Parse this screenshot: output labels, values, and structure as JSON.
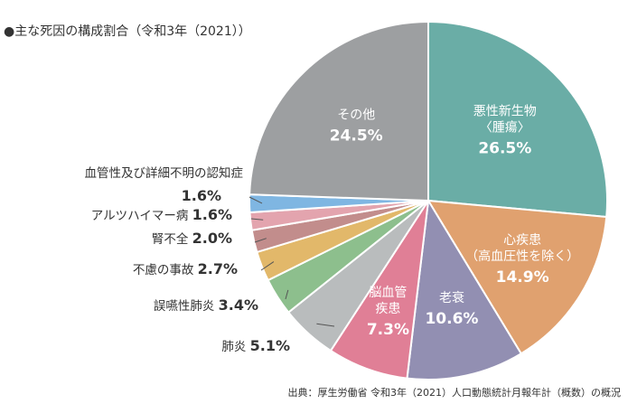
{
  "title": "●主な死因の構成割合（令和3年（2021））",
  "source": "出典：厚生労働省 令和3年（2021）人口動態統計月報年計（概数）の概況",
  "chart_data": {
    "type": "pie",
    "title": "●主な死因の構成割合（令和3年（2021））",
    "unit": "%",
    "slices": [
      {
        "name": "悪性新生物〈腫瘍〉",
        "name_lines": [
          "悪性新生物",
          "〈腫瘍〉"
        ],
        "value": 26.5,
        "label": "26.5%",
        "color": "#6aada6",
        "label_side": "inside"
      },
      {
        "name": "心疾患（高血圧性を除く）",
        "name_lines": [
          "心疾患",
          "（高血圧性を除く）"
        ],
        "value": 14.9,
        "label": "14.9%",
        "color": "#e0a16f",
        "label_side": "inside"
      },
      {
        "name": "老衰",
        "name_lines": [
          "老衰"
        ],
        "value": 10.6,
        "label": "10.6%",
        "color": "#928fb2",
        "label_side": "inside"
      },
      {
        "name": "脳血管疾患",
        "name_lines": [
          "脳血管",
          "疾患"
        ],
        "value": 7.3,
        "label": "7.3%",
        "color": "#e07f96",
        "label_side": "inside"
      },
      {
        "name": "肺炎",
        "name_lines": [
          "肺炎"
        ],
        "value": 5.1,
        "label": "5.1%",
        "color": "#b9bcbd",
        "label_side": "outside"
      },
      {
        "name": "誤嚥性肺炎",
        "name_lines": [
          "誤嚥性肺炎"
        ],
        "value": 3.4,
        "label": "3.4%",
        "color": "#8dbf8d",
        "label_side": "outside"
      },
      {
        "name": "不慮の事故",
        "name_lines": [
          "不慮の事故"
        ],
        "value": 2.7,
        "label": "2.7%",
        "color": "#e2b86a",
        "label_side": "outside"
      },
      {
        "name": "腎不全",
        "name_lines": [
          "腎不全"
        ],
        "value": 2.0,
        "label": "2.0%",
        "color": "#c28d8c",
        "label_side": "outside"
      },
      {
        "name": "アルツハイマー病",
        "name_lines": [
          "アルツハイマー病"
        ],
        "value": 1.6,
        "label": "1.6%",
        "color": "#e3a4ae",
        "label_side": "outside"
      },
      {
        "name": "血管性及び詳細不明の認知症",
        "name_lines": [
          "血管性及び詳細不明の認知症"
        ],
        "value": 1.6,
        "label": "1.6%",
        "color": "#7fb6e2",
        "label_side": "outside"
      },
      {
        "name": "その他",
        "name_lines": [
          "その他"
        ],
        "value": 24.5,
        "label": "24.5%",
        "color": "#9d9fa1",
        "label_side": "inside"
      }
    ]
  }
}
